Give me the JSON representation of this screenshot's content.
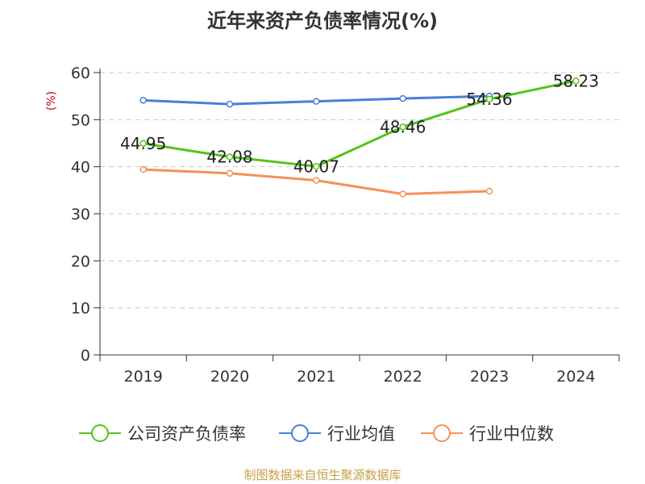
{
  "chart_data": {
    "type": "line",
    "title": "近年来资产负债率情况(%)",
    "ylabel": "(%)",
    "xlabel": "",
    "ylim": [
      0,
      60
    ],
    "yticks": [
      0,
      10,
      20,
      30,
      40,
      50,
      60
    ],
    "categories": [
      "2019",
      "2020",
      "2021",
      "2022",
      "2023",
      "2024"
    ],
    "grid": "horizontal-dashed",
    "legend_position": "bottom",
    "series": [
      {
        "name": "公司资产负债率",
        "color": "#52c41a",
        "values": [
          44.95,
          42.08,
          40.07,
          48.46,
          54.36,
          58.23
        ],
        "labels": [
          "44.95",
          "42.08",
          "40.07",
          "48.46",
          "54.36",
          "58.23"
        ]
      },
      {
        "name": "行业均值",
        "color": "#4a7fd6",
        "values": [
          54.1,
          53.3,
          53.9,
          54.5,
          55.0,
          null
        ]
      },
      {
        "name": "行业中位数",
        "color": "#f4915a",
        "values": [
          39.4,
          38.6,
          37.1,
          34.2,
          34.8,
          null
        ]
      }
    ]
  },
  "footer": {
    "source": "制图数据来自恒生聚源数据库"
  }
}
